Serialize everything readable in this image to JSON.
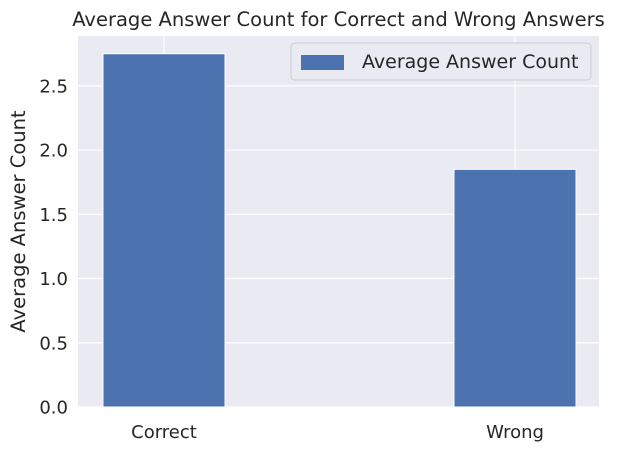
{
  "chart_data": {
    "type": "bar",
    "title": "Average Answer Count for Correct and Wrong Answers",
    "xlabel": "",
    "ylabel": "Average Answer Count",
    "categories": [
      "Correct",
      "Wrong"
    ],
    "series": [
      {
        "name": "Average Answer Count",
        "values": [
          2.75,
          1.85
        ]
      }
    ],
    "ylim": [
      0,
      2.888
    ],
    "yticks": [
      "0.0",
      "0.5",
      "1.0",
      "1.5",
      "2.0",
      "2.5"
    ],
    "grid": true,
    "legend_position": "top-right"
  },
  "colors": {
    "bar": "#4c72b0",
    "plot_background": "#eaeaf2",
    "grid": "#ffffff",
    "text": "#262626"
  }
}
